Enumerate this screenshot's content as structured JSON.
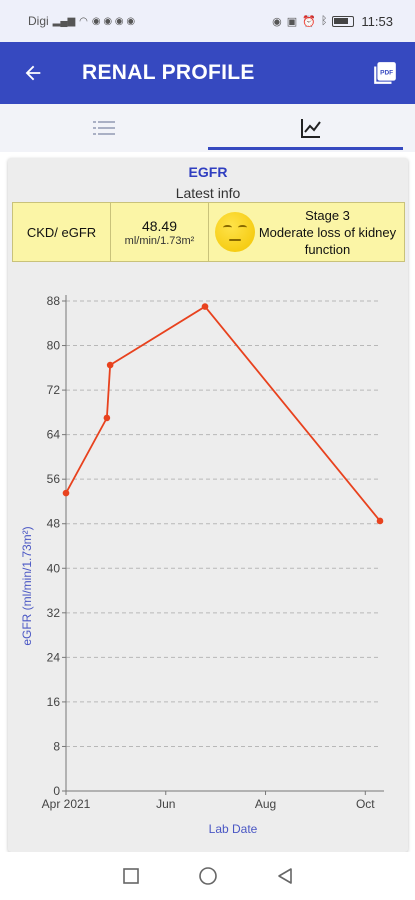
{
  "status_bar": {
    "carrier": "Digi",
    "time": "11:53"
  },
  "app_bar": {
    "title": "RENAL PROFILE",
    "back_icon": "arrow-left-icon",
    "pdf_icon": "pdf-icon"
  },
  "tabs": [
    {
      "icon": "list-icon",
      "active": false
    },
    {
      "icon": "chart-line-icon",
      "active": true
    }
  ],
  "card": {
    "title": "EGFR",
    "subtitle": "Latest info",
    "info": {
      "label": "CKD/ eGFR",
      "value": "48.49",
      "unit": "ml/min/1.73m²",
      "stage_line1": "Stage 3",
      "stage_line2": "Moderate loss of kidney function",
      "emoji_icon": "face-emoji-icon"
    }
  },
  "chart_data": {
    "type": "line",
    "x": [
      "2021-04-01",
      "2021-04-26",
      "2021-04-28",
      "2021-06-25",
      "2021-10-10"
    ],
    "values": [
      53.5,
      67,
      76.5,
      87,
      48.5
    ],
    "xlabel": "Lab Date",
    "ylabel": "eGFR (ml/min/1.73m²)",
    "ylim": [
      0,
      88
    ],
    "xlim": [
      "2021-04-01",
      "2021-10-10"
    ],
    "yticks": [
      0,
      8,
      16,
      24,
      32,
      40,
      48,
      56,
      64,
      72,
      80,
      88
    ],
    "xticks": [
      {
        "label": "Apr 2021",
        "date": "2021-04-01"
      },
      {
        "label": "Jun",
        "date": "2021-06-01"
      },
      {
        "label": "Aug",
        "date": "2021-08-01"
      },
      {
        "label": "Oct",
        "date": "2021-10-01"
      }
    ],
    "grid": true,
    "line_color": "#e8421e"
  },
  "nav_bar": {
    "icons": [
      "square-icon",
      "circle-icon",
      "triangle-back-icon"
    ]
  }
}
